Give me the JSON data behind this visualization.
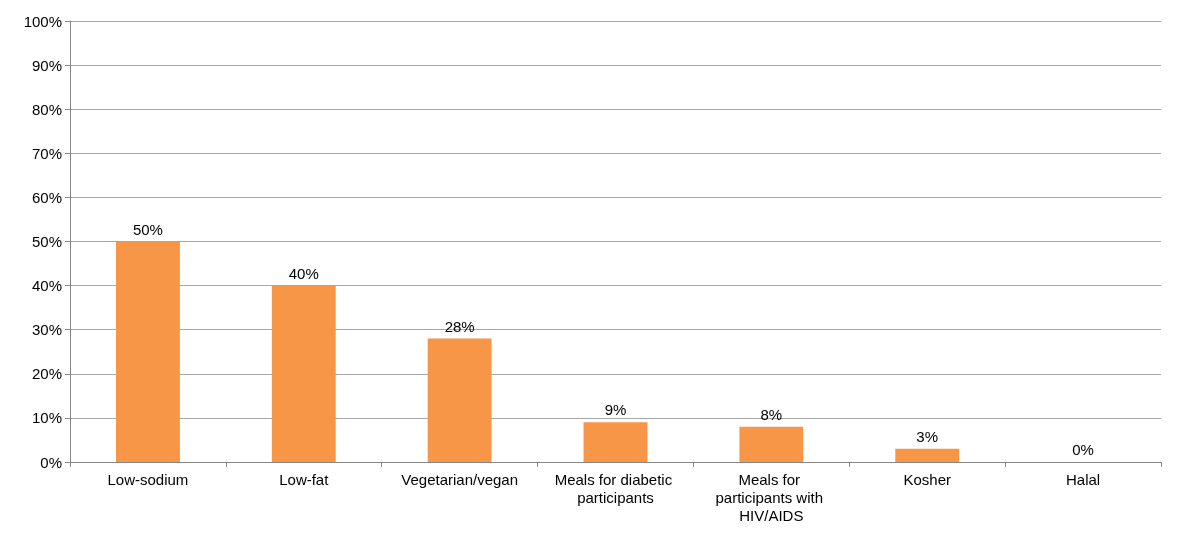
{
  "chart_data": {
    "type": "bar",
    "categories": [
      "Low-sodium",
      "Low-fat",
      "Vegetarian/vegan",
      "Meals for diabetic participants",
      "Meals for participants with HIV/AIDS",
      "Kosher",
      "Halal"
    ],
    "values": [
      50,
      40,
      28,
      9,
      8,
      3,
      0
    ],
    "value_labels": [
      "50%",
      "40%",
      "28%",
      "9%",
      "8%",
      "3%",
      "0%"
    ],
    "color": "#f79646",
    "ylim": [
      0,
      100
    ],
    "yticks": [
      {
        "value": 0,
        "label": "0%"
      },
      {
        "value": 10,
        "label": "10%"
      },
      {
        "value": 20,
        "label": "20%"
      },
      {
        "value": 30,
        "label": "30%"
      },
      {
        "value": 40,
        "label": "40%"
      },
      {
        "value": 50,
        "label": "50%"
      },
      {
        "value": 60,
        "label": "60%"
      },
      {
        "value": 70,
        "label": "70%"
      },
      {
        "value": 80,
        "label": "80%"
      },
      {
        "value": 90,
        "label": "90%"
      },
      {
        "value": 100,
        "label": "100%"
      }
    ],
    "grid": "y"
  }
}
